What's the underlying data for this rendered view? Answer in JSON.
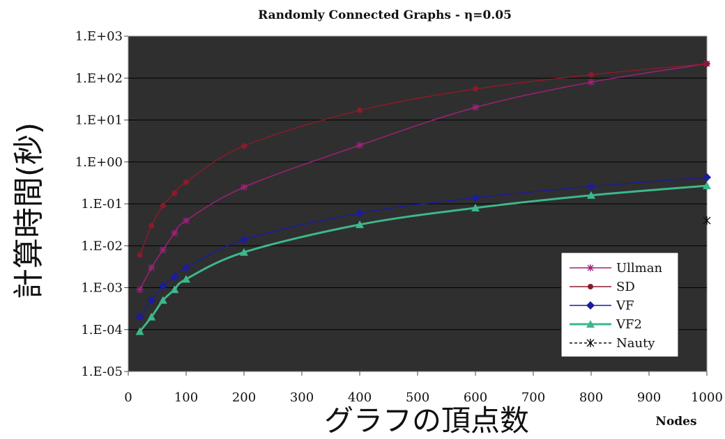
{
  "chart_data": {
    "type": "line",
    "title": "Randomly Connected Graphs - η=0.05",
    "xlabel": "グラフの頂点数",
    "xlabel_unit": "Nodes",
    "ylabel": "計算時間(秒)",
    "y_scale": "log",
    "xlim": [
      0,
      1000
    ],
    "ylim": [
      1e-05,
      1000
    ],
    "x_ticks": [
      "0",
      "100",
      "200",
      "300",
      "400",
      "500",
      "600",
      "700",
      "800",
      "900",
      "1000"
    ],
    "y_ticks": [
      "1.E-05",
      "1.E-04",
      "1.E-03",
      "1.E-02",
      "1.E-01",
      "1.E+00",
      "1.E+01",
      "1.E+02",
      "1.E+03"
    ],
    "grid": "horizontal",
    "legend_position": "bottom-right",
    "series": [
      {
        "name": "Ullman",
        "color": "#a0207a",
        "marker": "star",
        "x": [
          20,
          40,
          60,
          80,
          100,
          200,
          400,
          600,
          800,
          1000
        ],
        "y": [
          0.0009,
          0.003,
          0.008,
          0.02,
          0.04,
          0.25,
          2.5,
          20,
          80,
          220
        ]
      },
      {
        "name": "SD",
        "color": "#8b1a2a",
        "marker": "circle",
        "x": [
          20,
          40,
          60,
          80,
          100,
          200,
          400,
          600,
          800,
          1000
        ],
        "y": [
          0.006,
          0.03,
          0.09,
          0.18,
          0.33,
          2.4,
          17,
          55,
          120,
          220
        ]
      },
      {
        "name": "VF",
        "color": "#1c1c9c",
        "marker": "diamond",
        "x": [
          20,
          40,
          60,
          80,
          100,
          200,
          400,
          600,
          800,
          1000
        ],
        "y": [
          0.0002,
          0.0005,
          0.0011,
          0.0018,
          0.003,
          0.014,
          0.06,
          0.14,
          0.26,
          0.43
        ]
      },
      {
        "name": "VF2",
        "color": "#3cb88a",
        "marker": "triangle",
        "x": [
          20,
          40,
          60,
          80,
          100,
          200,
          400,
          600,
          800,
          1000
        ],
        "y": [
          9e-05,
          0.0002,
          0.0005,
          0.0009,
          0.0016,
          0.007,
          0.032,
          0.08,
          0.16,
          0.27
        ]
      },
      {
        "name": "Nauty",
        "color": "#111111",
        "marker": "x",
        "dash": "4,3",
        "x": [
          1000
        ],
        "y": [
          0.04
        ]
      }
    ]
  }
}
